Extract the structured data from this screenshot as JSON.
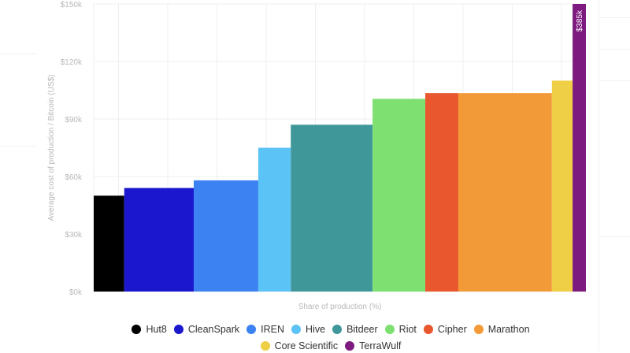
{
  "chart_data": {
    "type": "bar",
    "variant": "variable-width",
    "xlabel": "Share of production (%)",
    "ylabel": "Average cost of production / Bitcoin (US$)",
    "ylim": [
      0,
      150000
    ],
    "yticks": [
      0,
      30000,
      60000,
      90000,
      120000,
      150000
    ],
    "ytick_labels": [
      "$0k",
      "$30k",
      "$60k",
      "$90k",
      "$120k",
      "$150k"
    ],
    "grid": true,
    "legend_position": "bottom",
    "series": [
      {
        "name": "Hut8",
        "share": 6.2,
        "value": 50000,
        "color": "#000000"
      },
      {
        "name": "CleanSpark",
        "share": 14.1,
        "value": 54000,
        "color": "#1b17cf"
      },
      {
        "name": "IREN",
        "share": 13.1,
        "value": 58000,
        "color": "#3d82f2"
      },
      {
        "name": "Hive",
        "share": 6.6,
        "value": 75000,
        "color": "#5bc3f5"
      },
      {
        "name": "Bitdeer",
        "share": 16.6,
        "value": 87000,
        "color": "#40979a"
      },
      {
        "name": "Riot",
        "share": 10.7,
        "value": 100500,
        "color": "#7de070"
      },
      {
        "name": "Cipher",
        "share": 6.7,
        "value": 103500,
        "color": "#e8572d"
      },
      {
        "name": "Marathon",
        "share": 19.0,
        "value": 103500,
        "color": "#f39a38"
      },
      {
        "name": "Core Scientific",
        "share": 4.2,
        "value": 110000,
        "color": "#efcf45"
      },
      {
        "name": "TerraWulf",
        "share": 2.7,
        "value": 385000,
        "color": "#7d1a7f",
        "data_label": "$385k"
      }
    ]
  }
}
